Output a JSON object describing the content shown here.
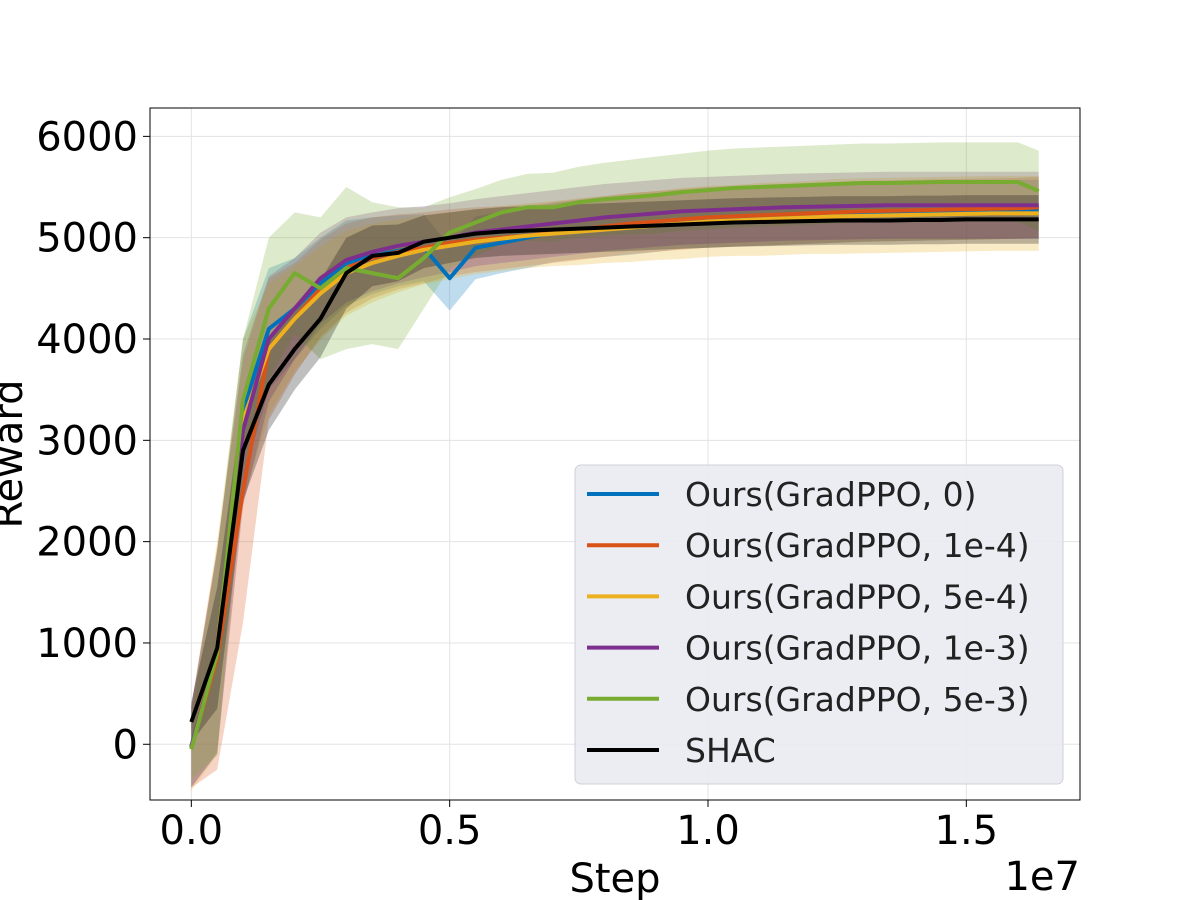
{
  "chart_data": {
    "type": "line",
    "title": "",
    "xlabel": "Step",
    "ylabel": "Reward",
    "x_offset_label": "1e7",
    "xlim": [
      -0.08,
      1.72
    ],
    "ylim": [
      -550,
      6280
    ],
    "xticks": [
      0.0,
      0.5,
      1.0,
      1.5
    ],
    "xtick_labels": [
      "0.0",
      "0.5",
      "1.0",
      "1.5"
    ],
    "yticks": [
      0,
      1000,
      2000,
      3000,
      4000,
      5000,
      6000
    ],
    "ytick_labels": [
      "0",
      "1000",
      "2000",
      "3000",
      "4000",
      "5000",
      "6000"
    ],
    "grid": true,
    "legend_position": "lower-right",
    "x": [
      0.0,
      0.05,
      0.1,
      0.15,
      0.2,
      0.25,
      0.3,
      0.35,
      0.4,
      0.45,
      0.5,
      0.55,
      0.6,
      0.65,
      0.7,
      0.75,
      0.8,
      0.85,
      0.9,
      0.95,
      1.0,
      1.05,
      1.1,
      1.15,
      1.2,
      1.25,
      1.3,
      1.35,
      1.4,
      1.45,
      1.5,
      1.55,
      1.6,
      1.64
    ],
    "series": [
      {
        "name": "Ours(GradPPO, 0)",
        "color": "#0072BD",
        "values": [
          -20,
          900,
          3300,
          4100,
          4300,
          4550,
          4750,
          4820,
          4870,
          4900,
          4600,
          4900,
          4950,
          5000,
          5050,
          5080,
          5100,
          5120,
          5150,
          5180,
          5190,
          5200,
          5210,
          5220,
          5230,
          5240,
          5250,
          5255,
          5260,
          5265,
          5270,
          5275,
          5280,
          5280
        ],
        "band": [
          400,
          1000,
          700,
          600,
          500,
          450,
          420,
          380,
          350,
          330,
          320,
          310,
          300,
          300,
          290,
          290,
          290,
          290,
          290,
          290,
          290,
          290,
          290,
          290,
          290,
          290,
          290,
          290,
          290,
          290,
          290,
          290,
          290,
          290
        ]
      },
      {
        "name": "Ours(GradPPO, 1e-4)",
        "color": "#D95319",
        "values": [
          -30,
          850,
          2500,
          3900,
          4200,
          4500,
          4700,
          4800,
          4860,
          4900,
          4950,
          4980,
          5000,
          5020,
          5050,
          5080,
          5110,
          5140,
          5160,
          5180,
          5200,
          5210,
          5220,
          5230,
          5240,
          5250,
          5260,
          5265,
          5270,
          5275,
          5280,
          5285,
          5290,
          5300
        ],
        "band": [
          400,
          1100,
          1300,
          700,
          550,
          480,
          440,
          400,
          370,
          350,
          330,
          320,
          310,
          300,
          300,
          300,
          300,
          300,
          300,
          300,
          300,
          300,
          300,
          300,
          300,
          300,
          300,
          300,
          300,
          300,
          300,
          300,
          300,
          300
        ]
      },
      {
        "name": "Ours(GradPPO, 5e-4)",
        "color": "#EDB120",
        "values": [
          -40,
          950,
          3200,
          3900,
          4200,
          4450,
          4650,
          4750,
          4820,
          4880,
          4920,
          4960,
          4990,
          5020,
          5040,
          5060,
          5080,
          5100,
          5120,
          5140,
          5160,
          5170,
          5180,
          5190,
          5200,
          5210,
          5215,
          5220,
          5225,
          5230,
          5235,
          5240,
          5240,
          5240
        ],
        "band": [
          420,
          1050,
          800,
          650,
          520,
          460,
          420,
          390,
          360,
          340,
          330,
          320,
          320,
          320,
          320,
          330,
          330,
          340,
          340,
          350,
          350,
          350,
          360,
          360,
          360,
          370,
          370,
          370,
          370,
          370,
          370,
          370,
          370,
          370
        ]
      },
      {
        "name": "Ours(GradPPO, 1e-3)",
        "color": "#7E2F8E",
        "values": [
          -30,
          920,
          3100,
          4000,
          4300,
          4600,
          4780,
          4860,
          4920,
          4960,
          5000,
          5050,
          5080,
          5110,
          5140,
          5170,
          5200,
          5220,
          5240,
          5260,
          5270,
          5280,
          5290,
          5300,
          5305,
          5310,
          5315,
          5320,
          5320,
          5320,
          5320,
          5320,
          5320,
          5320
        ],
        "band": [
          400,
          1000,
          750,
          620,
          500,
          450,
          420,
          390,
          370,
          350,
          340,
          330,
          330,
          330,
          330,
          330,
          330,
          330,
          330,
          330,
          330,
          330,
          330,
          330,
          330,
          330,
          330,
          330,
          330,
          330,
          330,
          330,
          330,
          330
        ]
      },
      {
        "name": "Ours(GradPPO, 5e-3)",
        "color": "#77AC30",
        "values": [
          -50,
          900,
          3400,
          4300,
          4650,
          4500,
          4700,
          4650,
          4600,
          4800,
          5050,
          5150,
          5250,
          5300,
          5300,
          5350,
          5380,
          5400,
          5420,
          5450,
          5470,
          5490,
          5500,
          5510,
          5520,
          5530,
          5540,
          5540,
          5545,
          5550,
          5550,
          5550,
          5550,
          5460
        ],
        "band": [
          300,
          1000,
          600,
          700,
          600,
          700,
          800,
          700,
          700,
          500,
          350,
          330,
          320,
          330,
          340,
          350,
          360,
          370,
          380,
          380,
          390,
          390,
          390,
          390,
          390,
          390,
          390,
          390,
          390,
          390,
          390,
          390,
          390,
          400
        ]
      },
      {
        "name": "SHAC",
        "color": "#000000",
        "values": [
          220,
          950,
          2900,
          3550,
          3900,
          4200,
          4650,
          4820,
          4850,
          4960,
          5000,
          5040,
          5060,
          5070,
          5080,
          5090,
          5100,
          5110,
          5120,
          5130,
          5140,
          5150,
          5155,
          5160,
          5165,
          5170,
          5170,
          5170,
          5175,
          5175,
          5180,
          5180,
          5180,
          5180
        ],
        "band": [
          200,
          600,
          500,
          450,
          400,
          380,
          350,
          300,
          280,
          260,
          250,
          240,
          240,
          240,
          240,
          240,
          240,
          240,
          240,
          240,
          240,
          240,
          240,
          240,
          240,
          240,
          240,
          240,
          240,
          240,
          240,
          240,
          240,
          240
        ]
      }
    ]
  }
}
